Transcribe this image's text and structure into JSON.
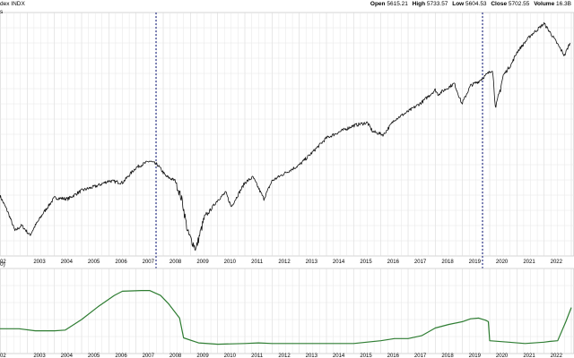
{
  "header": {
    "symbol_label": "dex INDX",
    "panel_label": "s",
    "lower_panel_label": "0)",
    "ohlcv": [
      {
        "label": "Open",
        "value": "5615.21"
      },
      {
        "label": "High",
        "value": "5733.57"
      },
      {
        "label": "Low",
        "value": "5604.53"
      },
      {
        "label": "Close",
        "value": "5702.55"
      },
      {
        "label": "Volume",
        "value": "16.3B"
      }
    ]
  },
  "chart_data": [
    {
      "type": "line",
      "panel": "price",
      "x_tick_labels": [
        "02",
        "2003",
        "2004",
        "2005",
        "2006",
        "2007",
        "2008",
        "2009",
        "2010",
        "2011",
        "2012",
        "2013",
        "2014",
        "2015",
        "2016",
        "2017",
        "2018",
        "2019",
        "2020",
        "2021",
        "2022",
        "2"
      ],
      "grid": true,
      "scale": "log",
      "series": [
        {
          "x": [
            2002.0,
            2002.3,
            2002.55,
            2002.8,
            2003.1,
            2003.3,
            2003.6,
            2004.0,
            2004.5,
            2005.0,
            2005.6,
            2006.0,
            2006.5,
            2007.0,
            2007.5,
            2007.8,
            2008.1,
            2008.45,
            2008.7,
            2008.9,
            2009.2,
            2009.5,
            2010.0,
            2010.3,
            2010.5,
            2011.0,
            2011.3,
            2011.7,
            2012.0,
            2012.5,
            2013.0,
            2013.5,
            2014.0,
            2014.5,
            2015.0,
            2015.5,
            2015.7,
            2016.1,
            2016.5,
            2017.0,
            2017.5,
            2018.0,
            2018.1,
            2018.7,
            2018.98,
            2019.3,
            2019.6,
            2020.1,
            2020.23,
            2020.5,
            2020.8,
            2021.0,
            2021.5,
            2022.0,
            2022.3,
            2022.75,
            2022.95
          ],
          "y": [
            1150,
            1000,
            860,
            900,
            830,
            900,
            1000,
            1130,
            1120,
            1200,
            1250,
            1300,
            1280,
            1450,
            1530,
            1480,
            1350,
            1300,
            1100,
            850,
            740,
            950,
            1110,
            1180,
            1050,
            1280,
            1340,
            1120,
            1300,
            1390,
            1480,
            1650,
            1850,
            1950,
            2050,
            2100,
            1950,
            1900,
            2150,
            2300,
            2480,
            2750,
            2650,
            2900,
            2450,
            2850,
            2950,
            3250,
            2350,
            3100,
            3400,
            3750,
            4300,
            4750,
            4300,
            3650,
            4050
          ]
        }
      ]
    },
    {
      "type": "line",
      "panel": "indicator",
      "x_tick_labels": [
        "02",
        "2003",
        "2004",
        "2005",
        "2006",
        "2007",
        "2008",
        "2009",
        "2010",
        "2011",
        "2012",
        "2013",
        "2014",
        "2015",
        "2016",
        "2017",
        "2018",
        "2019",
        "2020",
        "2021",
        "2022",
        "2"
      ],
      "grid": true,
      "ylim": [
        0,
        100
      ],
      "series": [
        {
          "x": [
            2002.0,
            2002.7,
            2003.3,
            2003.9,
            2004.0,
            2004.4,
            2005.0,
            2005.6,
            2006.2,
            2006.5,
            2007.2,
            2007.5,
            2007.9,
            2008.2,
            2008.6,
            2008.75,
            2009.3,
            2010.0,
            2011.0,
            2011.5,
            2012.0,
            2013.0,
            2014.0,
            2015.0,
            2016.0,
            2016.5,
            2017.0,
            2017.5,
            2018.0,
            2018.5,
            2019.0,
            2019.3,
            2019.6,
            2019.85,
            2019.95,
            2020.0,
            2020.7,
            2021.3,
            2022.0,
            2022.2,
            2022.5,
            2022.8,
            2023.0
          ],
          "y": [
            25,
            25,
            22,
            22,
            22,
            23,
            38,
            56,
            72,
            78,
            79,
            79,
            72,
            60,
            40,
            12,
            5,
            3,
            4,
            5,
            4,
            4,
            4,
            4,
            8,
            11,
            11,
            15,
            26,
            31,
            35,
            39,
            40,
            37,
            35,
            8,
            6,
            4,
            6,
            7,
            8,
            35,
            55
          ]
        }
      ]
    }
  ]
}
